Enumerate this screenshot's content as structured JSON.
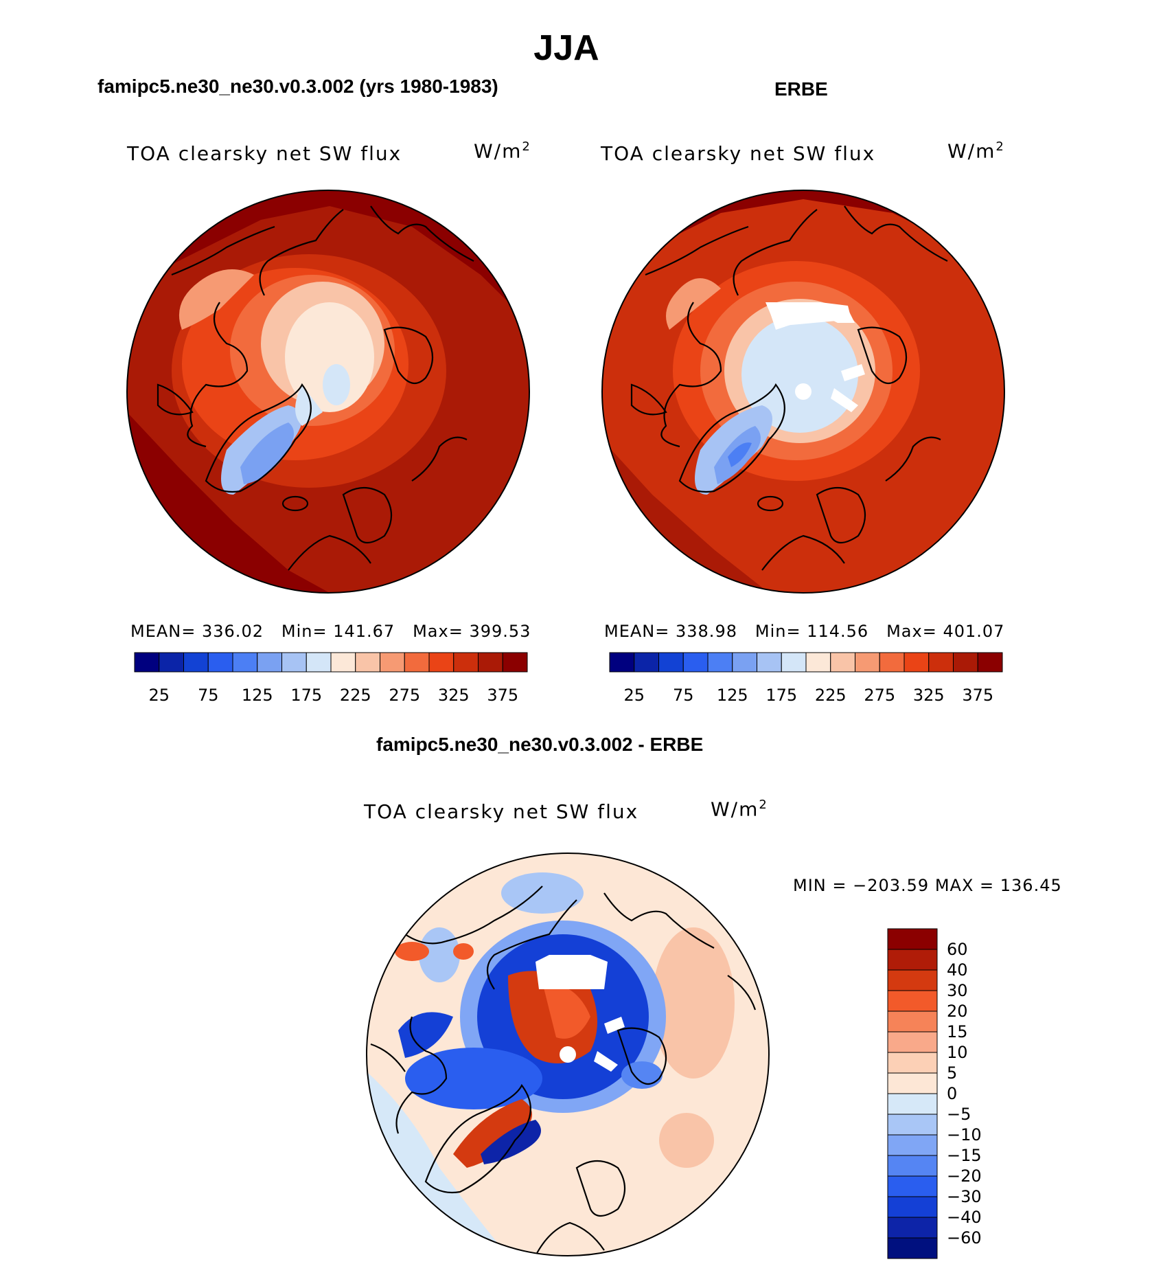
{
  "figure_title": "JJA",
  "colors": {
    "land_outline": "#000000",
    "background": "#ffffff",
    "missing": "#ffffff"
  },
  "chart_data": [
    {
      "type": "heatmap",
      "projection": "polar-stereographic-north",
      "panel_title": "famipc5.ne30_ne30.v0.3.002 (yrs 1980-1983)",
      "variable": "TOA clearsky net SW flux",
      "units": "W/m2",
      "stats": {
        "mean_label": "MEAN=",
        "mean": "336.02",
        "min_label": "Min=",
        "min": "141.67",
        "max_label": "Max=",
        "max": "399.53"
      },
      "colorbar": {
        "levels": [
          25,
          50,
          75,
          100,
          125,
          150,
          175,
          200,
          225,
          250,
          275,
          300,
          325,
          350,
          375
        ],
        "tick_labels": [
          "25",
          "75",
          "125",
          "175",
          "225",
          "275",
          "325",
          "375"
        ],
        "colors": [
          "#00007f",
          "#0b24a8",
          "#1242d4",
          "#2a5eef",
          "#4c7ff4",
          "#7aa1f2",
          "#a7c3f4",
          "#d4e6f8",
          "#fce8d8",
          "#f9c4a8",
          "#f69a73",
          "#f26b3d",
          "#ea4416",
          "#cc2f0c",
          "#aa1a06",
          "#8b0000"
        ]
      }
    },
    {
      "type": "heatmap",
      "projection": "polar-stereographic-north",
      "panel_title": "ERBE",
      "variable": "TOA clearsky net SW flux",
      "units": "W/m2",
      "stats": {
        "mean_label": "MEAN=",
        "mean": "338.98",
        "min_label": "Min=",
        "min": "114.56",
        "max_label": "Max=",
        "max": "401.07"
      },
      "colorbar": {
        "levels": [
          25,
          50,
          75,
          100,
          125,
          150,
          175,
          200,
          225,
          250,
          275,
          300,
          325,
          350,
          375
        ],
        "tick_labels": [
          "25",
          "75",
          "125",
          "175",
          "225",
          "275",
          "325",
          "375"
        ],
        "colors": [
          "#00007f",
          "#0b24a8",
          "#1242d4",
          "#2a5eef",
          "#4c7ff4",
          "#7aa1f2",
          "#a7c3f4",
          "#d4e6f8",
          "#fce8d8",
          "#f9c4a8",
          "#f69a73",
          "#f26b3d",
          "#ea4416",
          "#cc2f0c",
          "#aa1a06",
          "#8b0000"
        ]
      }
    },
    {
      "type": "heatmap",
      "projection": "polar-stereographic-north",
      "panel_title": "famipc5.ne30_ne30.v0.3.002 - ERBE",
      "variable": "TOA clearsky net SW flux",
      "units": "W/m2",
      "stats": {
        "text": "MIN = −203.59 MAX = 136.45",
        "min": -203.59,
        "max": 136.45
      },
      "colorbar": {
        "orientation": "vertical",
        "levels": [
          -60,
          -40,
          -30,
          -20,
          -15,
          -10,
          -5,
          0,
          5,
          10,
          15,
          20,
          30,
          40,
          60
        ],
        "tick_labels": [
          "60",
          "40",
          "30",
          "20",
          "15",
          "10",
          "5",
          "0",
          "−5",
          "−10",
          "−15",
          "−20",
          "−30",
          "−40",
          "−60"
        ],
        "colors_top_to_bottom": [
          "#8b0000",
          "#b01c08",
          "#d43a10",
          "#f25a2a",
          "#f68358",
          "#f9a98a",
          "#fcd0b6",
          "#fde7d6",
          "#d6e8f8",
          "#a9c6f6",
          "#80a6f5",
          "#5585f3",
          "#2a5eef",
          "#1440d6",
          "#0d24a8",
          "#00107f"
        ]
      }
    }
  ]
}
